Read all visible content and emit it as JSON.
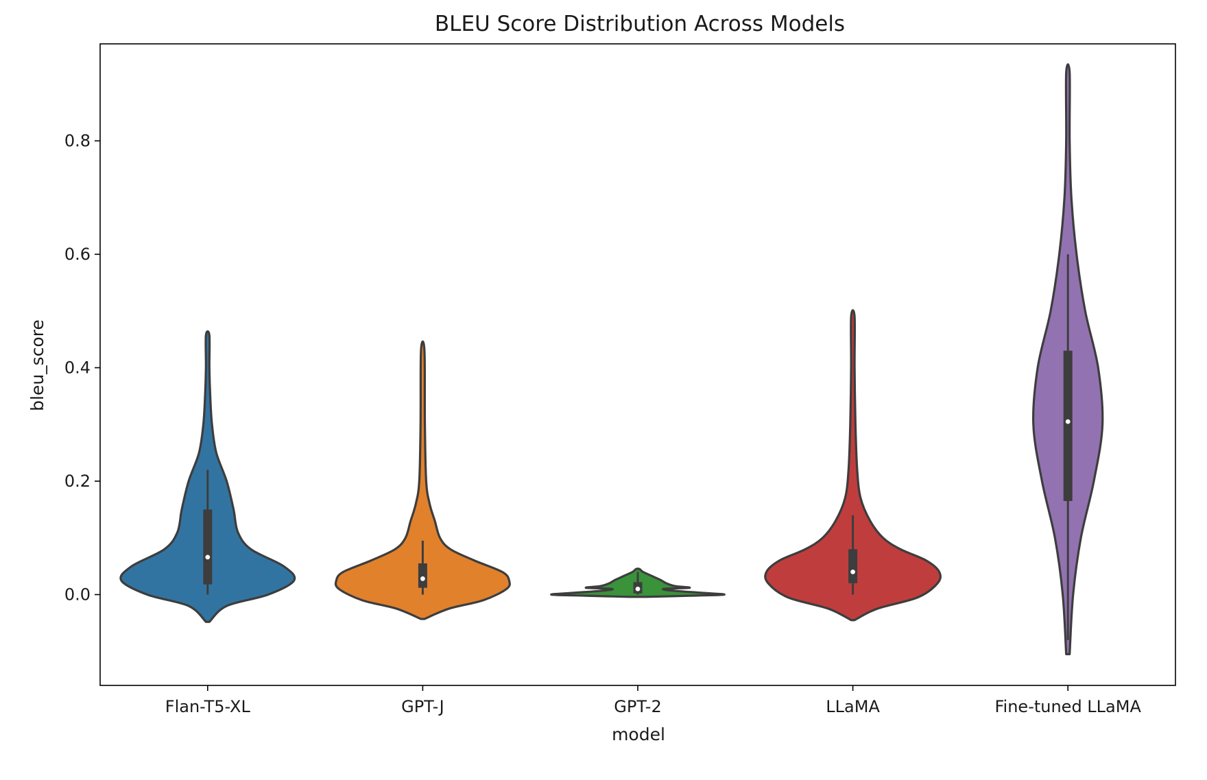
{
  "chart_data": {
    "type": "violin",
    "title": "BLEU Score Distribution Across Models",
    "xlabel": "model",
    "ylabel": "bleu_score",
    "ylim": [
      -0.16,
      0.97
    ],
    "yticks": [
      0.0,
      0.2,
      0.4,
      0.6,
      0.8
    ],
    "ytick_labels": [
      "0.0",
      "0.2",
      "0.4",
      "0.6",
      "0.8"
    ],
    "grid": false,
    "legend": "none",
    "categories": [
      "Flan-T5-XL",
      "GPT-J",
      "GPT-2",
      "LLaMA",
      "Fine-tuned LLaMA"
    ],
    "series": [
      {
        "category": "Flan-T5-XL",
        "color": "#3274a1",
        "min": -0.048,
        "max": 0.457,
        "q1": 0.018,
        "median": 0.066,
        "q3": 0.15,
        "whisker_low": 0.0,
        "whisker_high": 0.22,
        "density": [
          [
            -0.048,
            0.02
          ],
          [
            -0.02,
            0.22
          ],
          [
            0.0,
            0.7
          ],
          [
            0.025,
            1.0
          ],
          [
            0.05,
            0.88
          ],
          [
            0.08,
            0.5
          ],
          [
            0.11,
            0.35
          ],
          [
            0.15,
            0.3
          ],
          [
            0.2,
            0.22
          ],
          [
            0.25,
            0.1
          ],
          [
            0.3,
            0.05
          ],
          [
            0.35,
            0.03
          ],
          [
            0.4,
            0.02
          ],
          [
            0.457,
            0.02
          ]
        ]
      },
      {
        "category": "GPT-J",
        "color": "#e1812c",
        "min": -0.043,
        "max": 0.43,
        "q1": 0.012,
        "median": 0.028,
        "q3": 0.055,
        "whisker_low": 0.0,
        "whisker_high": 0.095,
        "density": [
          [
            -0.043,
            0.02
          ],
          [
            -0.025,
            0.3
          ],
          [
            -0.01,
            0.7
          ],
          [
            0.01,
            0.97
          ],
          [
            0.025,
            1.0
          ],
          [
            0.04,
            0.92
          ],
          [
            0.06,
            0.6
          ],
          [
            0.08,
            0.32
          ],
          [
            0.1,
            0.2
          ],
          [
            0.13,
            0.14
          ],
          [
            0.16,
            0.08
          ],
          [
            0.2,
            0.04
          ],
          [
            0.3,
            0.025
          ],
          [
            0.43,
            0.02
          ]
        ]
      },
      {
        "category": "GPT-2",
        "color": "#3a923a",
        "min": -0.004,
        "max": 0.045,
        "q1": 0.002,
        "median": 0.01,
        "q3": 0.022,
        "whisker_low": 0.0,
        "whisker_high": 0.04,
        "density": [
          [
            -0.004,
            0.1
          ],
          [
            -0.002,
            0.6
          ],
          [
            0.0,
            1.0
          ],
          [
            0.003,
            0.75
          ],
          [
            0.007,
            0.4
          ],
          [
            0.01,
            0.3
          ],
          [
            0.012,
            0.6
          ],
          [
            0.015,
            0.43
          ],
          [
            0.02,
            0.33
          ],
          [
            0.026,
            0.26
          ],
          [
            0.033,
            0.16
          ],
          [
            0.04,
            0.06
          ],
          [
            0.045,
            0.02
          ]
        ]
      },
      {
        "category": "LLaMA",
        "color": "#c03d3e",
        "min": -0.045,
        "max": 0.49,
        "q1": 0.02,
        "median": 0.04,
        "q3": 0.08,
        "whisker_low": 0.0,
        "whisker_high": 0.14,
        "density": [
          [
            -0.045,
            0.02
          ],
          [
            -0.025,
            0.28
          ],
          [
            -0.005,
            0.75
          ],
          [
            0.02,
            0.98
          ],
          [
            0.04,
            1.0
          ],
          [
            0.06,
            0.85
          ],
          [
            0.08,
            0.55
          ],
          [
            0.1,
            0.35
          ],
          [
            0.13,
            0.2
          ],
          [
            0.17,
            0.09
          ],
          [
            0.22,
            0.05
          ],
          [
            0.3,
            0.03
          ],
          [
            0.4,
            0.02
          ],
          [
            0.49,
            0.02
          ]
        ]
      },
      {
        "category": "Fine-tuned LLaMA",
        "color": "#9372b2",
        "min": -0.105,
        "max": 0.92,
        "q1": 0.165,
        "median": 0.305,
        "q3": 0.43,
        "whisker_low": -0.08,
        "whisker_high": 0.6,
        "density": [
          [
            -0.105,
            0.02
          ],
          [
            0.0,
            0.06
          ],
          [
            0.1,
            0.15
          ],
          [
            0.2,
            0.3
          ],
          [
            0.3,
            0.4
          ],
          [
            0.4,
            0.35
          ],
          [
            0.5,
            0.2
          ],
          [
            0.6,
            0.1
          ],
          [
            0.7,
            0.04
          ],
          [
            0.8,
            0.02
          ],
          [
            0.92,
            0.02
          ]
        ]
      }
    ]
  }
}
